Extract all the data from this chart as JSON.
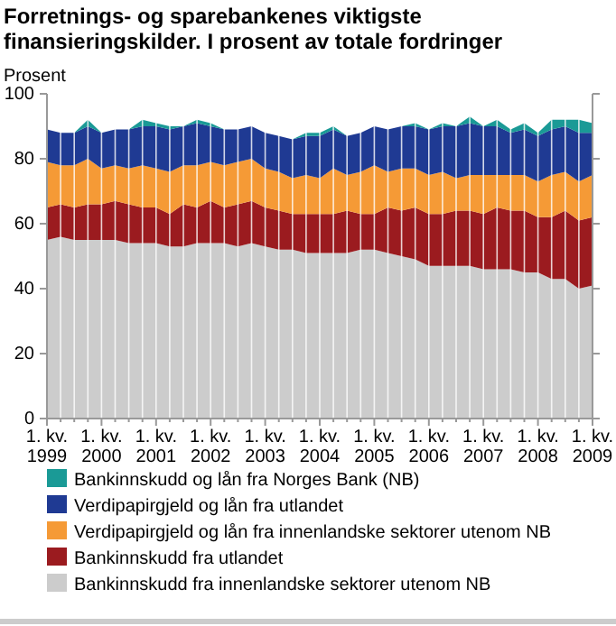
{
  "chart_data": {
    "type": "area",
    "stacked": true,
    "title": "Forretnings- og sparebankenes viktigste finansieringskilder. I prosent av totale fordringer",
    "ylabel": "Prosent",
    "categories": [
      "1. kv. 1999",
      null,
      null,
      null,
      "1. kv. 2000",
      null,
      null,
      null,
      "1. kv. 2001",
      null,
      null,
      null,
      "1. kv. 2002",
      null,
      null,
      null,
      "1. kv. 2003",
      null,
      null,
      null,
      "1. kv. 2004",
      null,
      null,
      null,
      "1. kv. 2005",
      null,
      null,
      null,
      "1. kv. 2006",
      null,
      null,
      null,
      "1. kv. 2007",
      null,
      null,
      null,
      "1. kv. 2008",
      null,
      null,
      null,
      "1. kv. 2009"
    ],
    "series": [
      {
        "name": "Bankinnskudd fra innenlandske sektorer utenom NB",
        "color": "#cccccc",
        "values": [
          55,
          56,
          55,
          55,
          55,
          55,
          54,
          54,
          54,
          53,
          53,
          54,
          54,
          54,
          53,
          54,
          53,
          52,
          52,
          51,
          51,
          51,
          51,
          52,
          52,
          51,
          50,
          49,
          47,
          47,
          47,
          47,
          46,
          46,
          46,
          45,
          45,
          43,
          43,
          40,
          41
        ]
      },
      {
        "name": "Bankinnskudd fra utlandet",
        "color": "#9b1b1f",
        "values": [
          10,
          10,
          10,
          11,
          11,
          12,
          12,
          11,
          11,
          10,
          13,
          11,
          13,
          11,
          13,
          13,
          12,
          12,
          11,
          12,
          12,
          12,
          13,
          11,
          11,
          14,
          14,
          16,
          16,
          16,
          17,
          17,
          17,
          19,
          18,
          19,
          17,
          19,
          21,
          21,
          21
        ]
      },
      {
        "name": "Verdipapirgjeld og lån fra innenlandske sektorer utenom NB",
        "color": "#f59a36",
        "values": [
          14,
          12,
          13,
          14,
          11,
          11,
          11,
          13,
          12,
          13,
          12,
          13,
          12,
          13,
          13,
          13,
          12,
          12,
          11,
          12,
          11,
          14,
          11,
          13,
          15,
          11,
          13,
          12,
          12,
          13,
          10,
          11,
          12,
          10,
          11,
          11,
          11,
          13,
          12,
          12,
          13
        ]
      },
      {
        "name": "Verdipapirgjeld og lån fra utlandet",
        "color": "#1f3a93",
        "values": [
          10,
          10,
          10,
          10,
          11,
          11,
          12,
          12,
          13,
          13,
          12,
          13,
          11,
          11,
          10,
          10,
          11,
          11,
          12,
          12,
          13,
          12,
          12,
          12,
          12,
          13,
          13,
          13,
          14,
          14,
          16,
          16,
          15,
          15,
          13,
          14,
          14,
          14,
          14,
          15,
          13
        ]
      },
      {
        "name": "Bankinnskudd og lån fra Norges Bank (NB)",
        "color": "#1a9a96",
        "values": [
          0,
          0,
          0,
          2,
          0,
          0,
          0,
          2,
          1,
          1,
          0,
          1,
          1,
          0,
          0,
          0,
          0,
          0,
          0,
          1,
          1,
          1,
          0,
          0,
          0,
          0,
          0,
          1,
          0,
          1,
          0,
          2,
          0,
          2,
          1,
          2,
          1,
          3,
          2,
          4,
          3
        ]
      }
    ],
    "ylim": [
      0,
      100
    ],
    "yticks": [
      0,
      20,
      40,
      60,
      80,
      100
    ],
    "grid": "x",
    "legend": "bottom"
  }
}
